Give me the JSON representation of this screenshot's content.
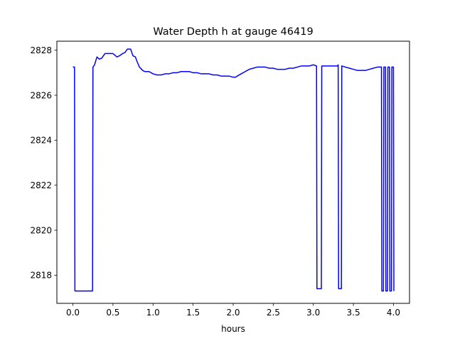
{
  "chart_data": {
    "type": "line",
    "title": "Water Depth h at gauge 46419",
    "xlabel": "hours",
    "ylabel": "",
    "xlim": [
      -0.2,
      4.2
    ],
    "ylim": [
      2816.75,
      2828.4
    ],
    "xticks": [
      0.0,
      0.5,
      1.0,
      1.5,
      2.0,
      2.5,
      3.0,
      3.5,
      4.0
    ],
    "xtick_labels": [
      "0.0",
      "0.5",
      "1.0",
      "1.5",
      "2.0",
      "2.5",
      "3.0",
      "3.5",
      "4.0"
    ],
    "yticks": [
      2818,
      2820,
      2822,
      2824,
      2826,
      2828
    ],
    "ytick_labels": [
      "2818",
      "2820",
      "2822",
      "2824",
      "2826",
      "2828"
    ],
    "grid": false,
    "series": [
      {
        "color": "#0000ff",
        "x": [
          0.0,
          0.02,
          0.025,
          0.245,
          0.25,
          0.27,
          0.3,
          0.33,
          0.36,
          0.4,
          0.43,
          0.47,
          0.5,
          0.55,
          0.58,
          0.62,
          0.65,
          0.68,
          0.72,
          0.75,
          0.78,
          0.8,
          0.83,
          0.87,
          0.9,
          0.95,
          1.0,
          1.05,
          1.1,
          1.15,
          1.2,
          1.25,
          1.3,
          1.35,
          1.4,
          1.45,
          1.5,
          1.55,
          1.6,
          1.65,
          1.7,
          1.75,
          1.8,
          1.85,
          1.9,
          1.95,
          2.0,
          2.03,
          2.05,
          2.1,
          2.15,
          2.2,
          2.25,
          2.3,
          2.35,
          2.4,
          2.45,
          2.5,
          2.55,
          2.6,
          2.65,
          2.7,
          2.75,
          2.8,
          2.85,
          2.9,
          2.95,
          3.0,
          3.04,
          3.045,
          3.1,
          3.105,
          3.15,
          3.2,
          3.25,
          3.3,
          3.31,
          3.315,
          3.35,
          3.355,
          3.4,
          3.45,
          3.5,
          3.55,
          3.6,
          3.65,
          3.7,
          3.75,
          3.8,
          3.85,
          3.855,
          3.875,
          3.88,
          3.9,
          3.905,
          3.925,
          3.93,
          3.95,
          3.955,
          3.975,
          3.98,
          4.0,
          4.005
        ],
        "y": [
          2827.25,
          2827.25,
          2817.3,
          2817.3,
          2827.25,
          2827.35,
          2827.7,
          2827.6,
          2827.65,
          2827.85,
          2827.85,
          2827.85,
          2827.85,
          2827.7,
          2827.75,
          2827.85,
          2827.9,
          2828.05,
          2828.05,
          2827.75,
          2827.7,
          2827.5,
          2827.25,
          2827.1,
          2827.05,
          2827.05,
          2826.95,
          2826.9,
          2826.9,
          2826.95,
          2826.95,
          2827.0,
          2827.0,
          2827.05,
          2827.05,
          2827.05,
          2827.0,
          2827.0,
          2826.95,
          2826.95,
          2826.95,
          2826.9,
          2826.9,
          2826.85,
          2826.85,
          2826.85,
          2826.8,
          2826.8,
          2826.85,
          2826.95,
          2827.05,
          2827.15,
          2827.2,
          2827.25,
          2827.25,
          2827.25,
          2827.2,
          2827.2,
          2827.15,
          2827.15,
          2827.15,
          2827.2,
          2827.2,
          2827.25,
          2827.3,
          2827.3,
          2827.3,
          2827.35,
          2827.3,
          2817.4,
          2817.4,
          2827.3,
          2827.3,
          2827.3,
          2827.3,
          2827.3,
          2827.35,
          2817.4,
          2817.4,
          2827.3,
          2827.25,
          2827.2,
          2827.15,
          2827.1,
          2827.1,
          2827.1,
          2827.15,
          2827.2,
          2827.25,
          2827.25,
          2817.3,
          2817.3,
          2827.25,
          2827.25,
          2817.3,
          2817.3,
          2827.25,
          2827.25,
          2817.3,
          2817.3,
          2827.25,
          2827.25,
          2817.3
        ]
      }
    ]
  }
}
